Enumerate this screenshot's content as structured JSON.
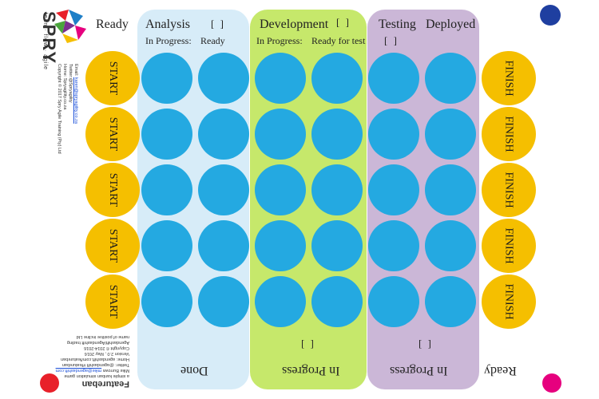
{
  "colors": {
    "token": "#24a9e1",
    "start_finish": "#f5bf00",
    "analysis_col": "#d7ecf8",
    "development_col": "#c6e86b",
    "testing_col": "#cbb7d7",
    "corner_top_right": "#1f3fa0",
    "corner_bottom_left": "#e8202a",
    "corner_bottom_right": "#e6007e"
  },
  "top": {
    "ready": "Ready",
    "analysis": "Analysis",
    "analysis_wip": "[    ]",
    "analysis_in_progress": "In Progress:",
    "analysis_ready": "Ready",
    "development": "Development",
    "development_wip": "[    ]",
    "development_in_progress": "In Progress:",
    "development_ready": "Ready for test",
    "testing": "Testing",
    "deployed": "Deployed",
    "testing_wip": "[    ]"
  },
  "bottom": {
    "done": "Done",
    "dev_in_progress": "In Progress",
    "dev_wip": "[    ]",
    "test_in_progress": "In Progress",
    "test_wip": "[    ]",
    "ready": "Ready"
  },
  "start_label": "START",
  "finish_label": "FINISH",
  "lanes": 5,
  "tokens_per_lane": 6,
  "spry": {
    "wordmark": "SPRY",
    "tagline": "lean · flow · agile",
    "email_label": "Email:",
    "email": "karen@spryagility.co.za",
    "twitter": "Twitter:@Spryagility",
    "home": "Home: Spryagility.co.za",
    "copyright": "Copyright © 2017 Spry Agile Training (Pty) Ltd"
  },
  "featureban": {
    "title": "Featureban",
    "tagline": "a simple kanban simulation game",
    "author": "Mike Burrows",
    "author_email": "mike@agendashift.com",
    "twitter": "Twitter: @agendashift #featureban",
    "home": "Home: agendashift.com/featureban",
    "version": "Version 2.0 , May 2016",
    "copyright": "Copyright © 2014-2016 Agendashift/Agendashift trading",
    "trading": "name of positive incline Ltd"
  }
}
